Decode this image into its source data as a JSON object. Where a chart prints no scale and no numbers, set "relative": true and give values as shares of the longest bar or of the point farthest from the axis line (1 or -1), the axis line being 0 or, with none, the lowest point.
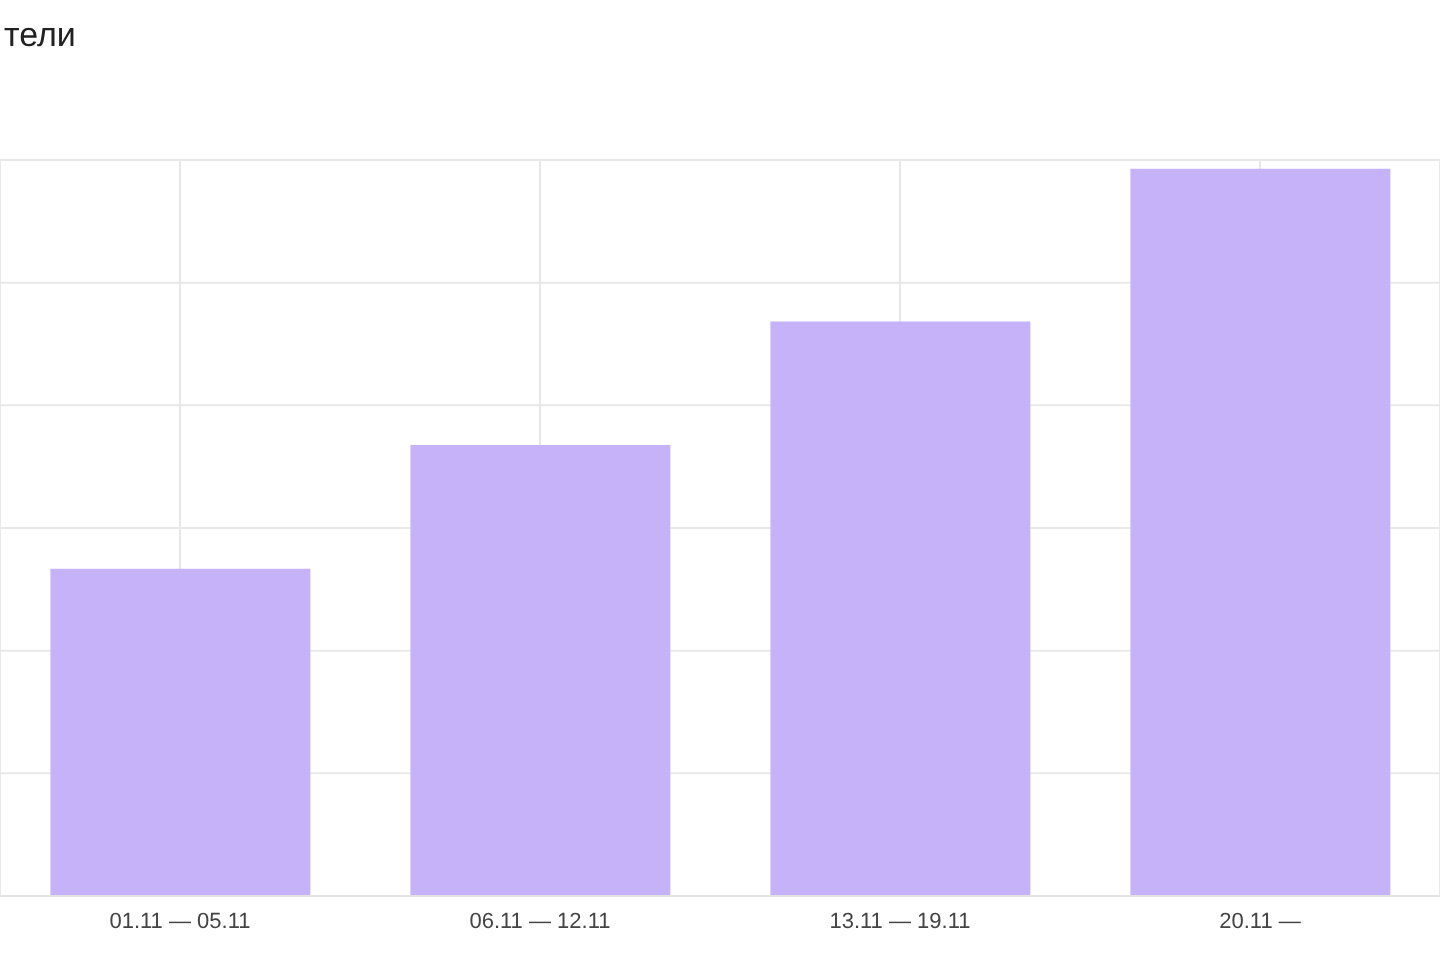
{
  "chart_data": {
    "type": "bar",
    "title": "тели",
    "categories": [
      "01.11 — 05.11",
      "06.11 — 12.11",
      "13.11 — 19.11",
      "20.11 —"
    ],
    "values": [
      0.45,
      0.62,
      0.79,
      1
    ],
    "color": "#c5b2f9",
    "relative": true,
    "grid": true
  }
}
